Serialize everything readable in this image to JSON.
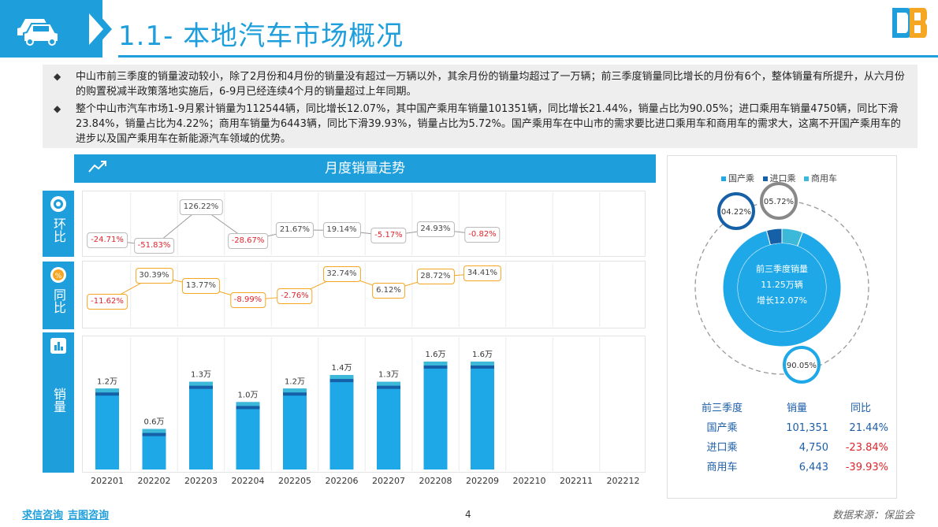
{
  "header": {
    "title": "1.1- 本地汽车市场概况"
  },
  "summary": {
    "bullets": [
      "中山市前三季度的销量波动较小，除了2月份和4月份的销量没有超过一万辆以外，其余月份的销量均超过了一万辆；前三季度销量同比增长的月份有6个，整体销量有所提升，从六月份的购置税减半政策落地实施后，6-9月已经连续4个月的销量超过上年同期。",
      "整个中山市汽车市场1-9月累计销量为112544辆，同比增长12.07%，其中国产乘用车销量101351辆，同比增长21.44%，销量占比为90.05%；进口乘用车销量4750辆，同比下滑23.84%，销量占比为4.22%；商用车销量为6443辆，同比下滑39.93%，销量占比为5.72%。国产乘用车在中山市的需求要比进口乘用车和商用车的需求大，这离不开国产乘用车的进步以及国产乘用车在新能源汽车领域的优势。"
    ]
  },
  "trend_panel": {
    "title": "月度销量走势",
    "row_huanbi": "环比",
    "row_tongbi": "同比",
    "row_xiaoliang": "销量"
  },
  "chart_data": {
    "type": "bar",
    "categories": [
      "202201",
      "202202",
      "202203",
      "202204",
      "202205",
      "202206",
      "202207",
      "202208",
      "202209",
      "202210",
      "202211",
      "202212"
    ],
    "series": [
      {
        "values": [
          1.2,
          0.6,
          1.3,
          1.0,
          1.2,
          1.4,
          1.3,
          1.6,
          1.6,
          null,
          null,
          null
        ]
      }
    ],
    "bar_labels": [
      "1.2万",
      "0.6万",
      "1.3万",
      "1.0万",
      "1.2万",
      "1.4万",
      "1.3万",
      "1.6万",
      "1.6万"
    ],
    "huanbi": [
      "-24.71%",
      "-51.83%",
      "126.22%",
      "-28.67%",
      "21.67%",
      "19.14%",
      "-5.17%",
      "24.93%",
      "-0.82%"
    ],
    "huanbi_values": [
      -24.71,
      -51.83,
      126.22,
      -28.67,
      21.67,
      19.14,
      -5.17,
      24.93,
      -0.82
    ],
    "tongbi": [
      "-11.62%",
      "30.39%",
      "13.77%",
      "-8.99%",
      "-2.76%",
      "32.74%",
      "6.12%",
      "28.72%",
      "34.41%"
    ],
    "tongbi_values": [
      -11.62,
      30.39,
      13.77,
      -8.99,
      -2.76,
      32.74,
      6.12,
      28.72,
      34.41
    ]
  },
  "share_chart": {
    "type": "pie",
    "legend": [
      "国产乘",
      "进口乘",
      "商用车"
    ],
    "values": [
      90.05,
      4.22,
      5.72
    ],
    "labels": [
      "90.05%",
      "04.22%",
      "05.72%"
    ],
    "colors": [
      "#1ea8e8",
      "#1660a8",
      "#3cb8d8"
    ],
    "center": [
      "前三季度销量",
      "11.25万辆",
      "增长12.07%"
    ]
  },
  "table": {
    "headers": [
      "前三季度",
      "销量",
      "同比"
    ],
    "rows": [
      [
        "国产乘",
        "101,351",
        "21.44%"
      ],
      [
        "进口乘",
        "4,750",
        "-23.84%"
      ],
      [
        "商用车",
        "6,443",
        "-39.93%"
      ]
    ]
  },
  "footer": {
    "left1": "求信咨询",
    "left2": "吉图咨询",
    "page": "4",
    "source": "数据来源：保监会"
  },
  "colors": {
    "accent": "#1e9fdc",
    "bar": "#1ea8e8",
    "bar_dark": "#1660a8",
    "negative": "#e0242b",
    "tongbi_border": "#f5a623"
  }
}
